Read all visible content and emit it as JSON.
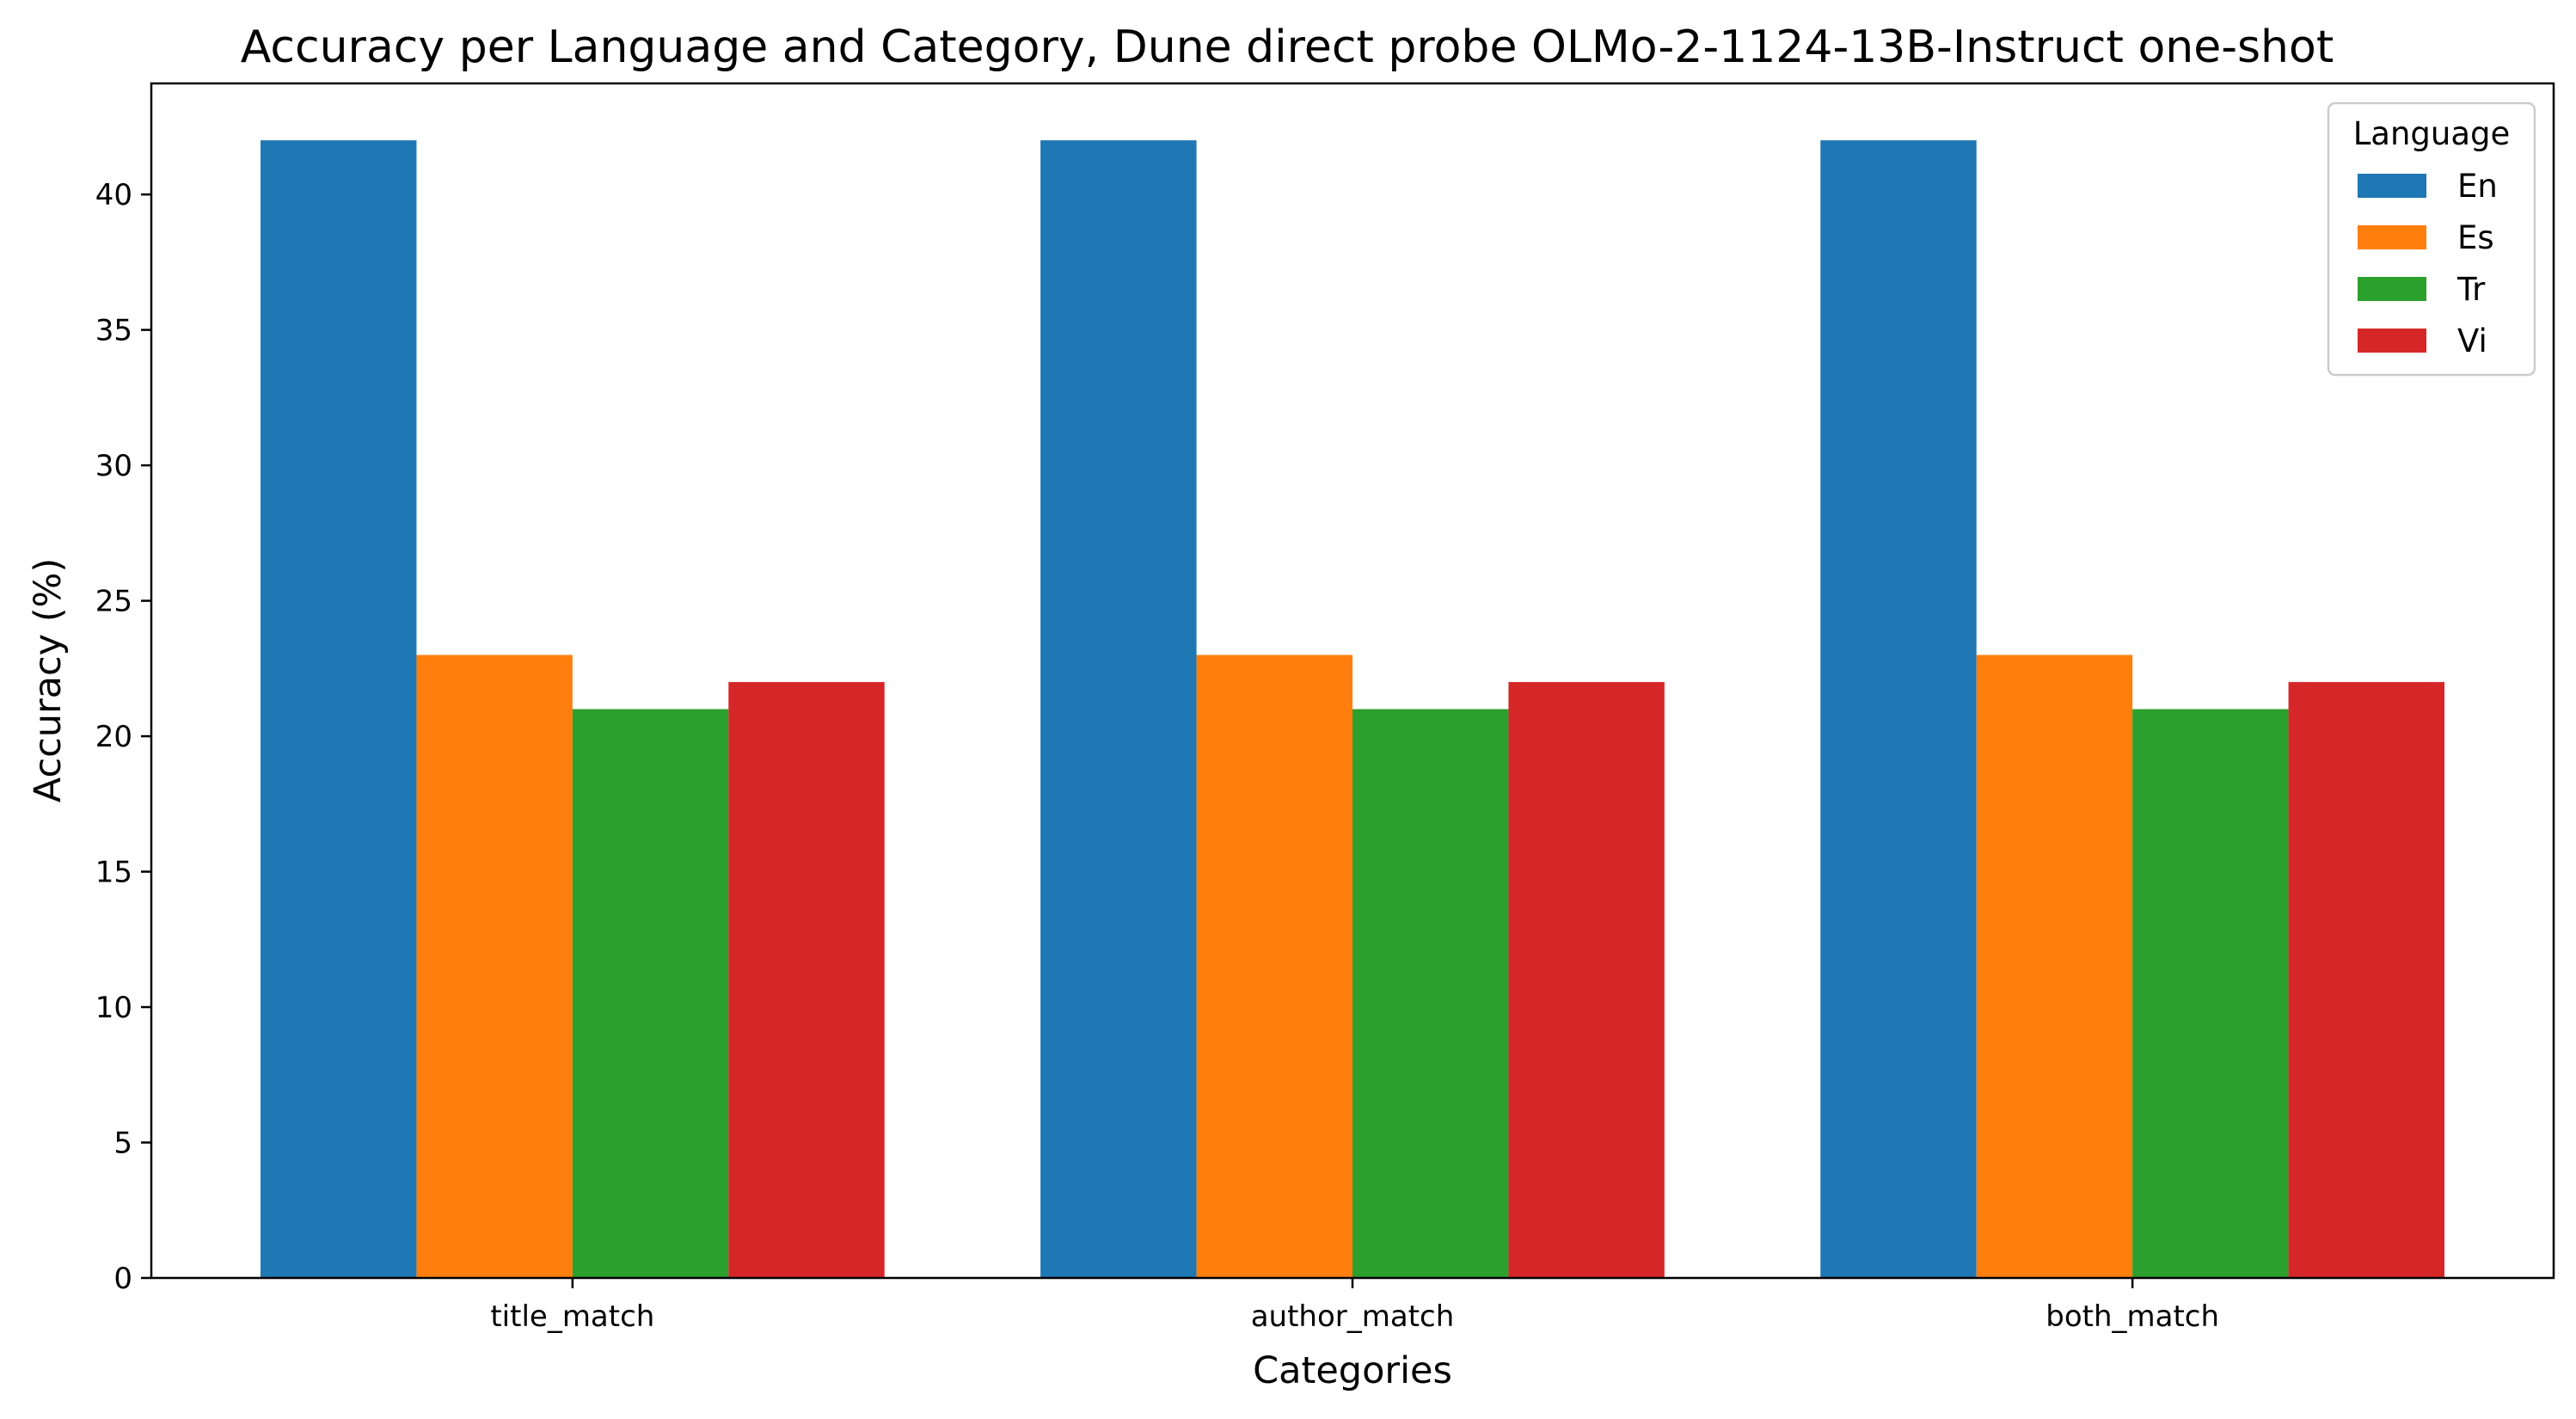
{
  "chart_data": {
    "type": "bar",
    "title": "Accuracy per Language and Category, Dune direct probe OLMo-2-1124-13B-Instruct one-shot",
    "xlabel": "Categories",
    "ylabel": "Accuracy (%)",
    "categories": [
      "title_match",
      "author_match",
      "both_match"
    ],
    "series": [
      {
        "name": "En",
        "color": "#1f77b4",
        "values": [
          42,
          42,
          42
        ]
      },
      {
        "name": "Es",
        "color": "#ff7f0e",
        "values": [
          23,
          23,
          23
        ]
      },
      {
        "name": "Tr",
        "color": "#2ca02c",
        "values": [
          21,
          21,
          21
        ]
      },
      {
        "name": "Vi",
        "color": "#d62728",
        "values": [
          22,
          22,
          22
        ]
      }
    ],
    "ylim": [
      0,
      44.1
    ],
    "yticks": [
      0,
      5,
      10,
      15,
      20,
      25,
      30,
      35,
      40
    ],
    "grid": false,
    "legend": {
      "title": "Language",
      "position": "top-right"
    }
  }
}
